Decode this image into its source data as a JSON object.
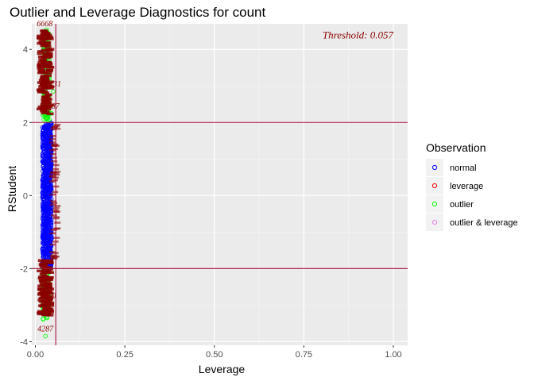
{
  "chart_data": {
    "type": "scatter",
    "title": "Outlier and Leverage Diagnostics for count",
    "xlabel": "Leverage",
    "ylabel": "RStudent",
    "xlim": [
      -0.01,
      1.04
    ],
    "ylim": [
      -4.1,
      4.7
    ],
    "x_ticks": [
      0.0,
      0.25,
      0.5,
      0.75,
      1.0
    ],
    "x_tick_labels": [
      "0.00",
      "0.25",
      "0.50",
      "0.75",
      "1.00"
    ],
    "y_ticks": [
      -4,
      -2,
      0,
      2,
      4
    ],
    "y_tick_labels": [
      "-4",
      "-2",
      "0",
      "2",
      "4"
    ],
    "hlines": [
      2,
      -2
    ],
    "vline": 0.057,
    "annotation": "Threshold: 0.057",
    "grid": true,
    "legend": {
      "title": "Observation",
      "placement": "right",
      "entries": [
        {
          "label": "normal",
          "color": "#0000ff"
        },
        {
          "label": "leverage",
          "color": "#ff0000"
        },
        {
          "label": "outlier",
          "color": "#00ff00"
        },
        {
          "label": "outlier & leverage",
          "color": "#ee82ee"
        }
      ]
    },
    "clusters": [
      {
        "series": "normal",
        "x": [
          0.02,
          0.045
        ],
        "y": [
          -2.0,
          2.0
        ],
        "count": 900
      },
      {
        "series": "outlier",
        "x": [
          0.02,
          0.04
        ],
        "y": [
          2.0,
          4.6
        ],
        "count": 150
      },
      {
        "series": "outlier",
        "x": [
          0.02,
          0.04
        ],
        "y": [
          -3.4,
          -2.0
        ],
        "count": 120
      }
    ],
    "points": [
      {
        "series": "outlier",
        "x": 0.028,
        "y": -3.85,
        "label": "4287"
      },
      {
        "series": "outlier",
        "x": 0.033,
        "y": -3.35,
        "label": ""
      },
      {
        "series": "outlier",
        "x": 0.026,
        "y": -3.1,
        "label": ""
      },
      {
        "series": "outlier",
        "x": 0.035,
        "y": -2.95,
        "label": "2850"
      },
      {
        "series": "outlier",
        "x": 0.026,
        "y": 4.5,
        "label": "6668"
      },
      {
        "series": "outlier",
        "x": 0.045,
        "y": 2.25,
        "label": "1687"
      },
      {
        "series": "outlier",
        "x": 0.05,
        "y": 2.85,
        "label": "2431"
      }
    ],
    "point_colors": {
      "normal": "#0000ff",
      "leverage": "#ff0000",
      "outlier": "#00ff00",
      "outlier & leverage": "#ee82ee"
    },
    "label_color": "#8b0000",
    "line_color": "#a50f3c"
  }
}
